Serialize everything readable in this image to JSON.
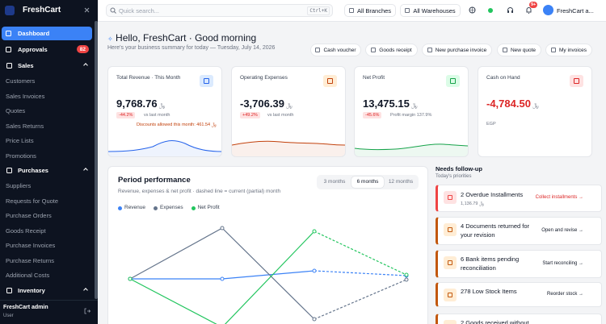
{
  "sidebar": {
    "brand": "FreshCart",
    "primary": [
      {
        "label": "Dashboard"
      },
      {
        "label": "Approvals",
        "badge": 82
      }
    ],
    "sections": [
      {
        "label": "Sales",
        "items": [
          "Customers",
          "Sales Invoices",
          "Quotes",
          "Sales Returns",
          "Price Lists",
          "Promotions"
        ]
      },
      {
        "label": "Purchases",
        "items": [
          "Suppliers",
          "Requests for Quote",
          "Purchase Orders",
          "Goods Receipt",
          "Purchase Invoices",
          "Purchase Returns",
          "Additional Costs"
        ]
      },
      {
        "label": "Inventory",
        "items": []
      }
    ],
    "user": {
      "name": "FreshCart admin",
      "role": "User"
    }
  },
  "topbar": {
    "search": "Quick search...",
    "shortcut": "Ctrl+K",
    "branch": "All Branches",
    "warehouse": "All Warehouses",
    "notifications": "9+",
    "user": "FreshCart a..."
  },
  "header": {
    "title": "Hello, FreshCart · Good morning",
    "subtitle": "Here's your business summary for today — Tuesday, July 14, 2026",
    "actions": [
      "Cash voucher",
      "Goods receipt",
      "New purchase invoice",
      "New quote",
      "My invoices"
    ]
  },
  "kpis": [
    {
      "title": "Total Revenue · This Month",
      "value": "9,768.76",
      "currency": "﷼",
      "change": "-44.2%",
      "change_note": "vs last month",
      "note": "Discounts allowed this month: 461.54 ﷼",
      "color": "#2563eb",
      "icon_bg": "#dbeafe"
    },
    {
      "title": "Operating Expenses",
      "value": "-3,706.39",
      "currency": "﷼",
      "change": "+49.2%",
      "change_note": "vs last month",
      "color": "#c2410c",
      "icon_bg": "#ffedd5"
    },
    {
      "title": "Net Profit",
      "value": "13,475.15",
      "currency": "﷼",
      "change": "-45.6%",
      "change_note": "Profit margin 137.9%",
      "color": "#16a34a",
      "icon_bg": "#dcfce7"
    },
    {
      "title": "Cash on Hand",
      "value": "-4,784.50",
      "currency": "﷼",
      "note": "EGP",
      "value_color": "#dc2626",
      "color": "#dc2626",
      "icon_bg": "#fee2e2"
    }
  ],
  "performance": {
    "title": "Period performance",
    "subtitle": "Revenue, expenses & net profit · dashed line = current (partial) month",
    "ranges": [
      "3 months",
      "6 months",
      "12 months"
    ],
    "selected_range": 1,
    "chart_data": {
      "type": "line",
      "ylim": [
        -20000,
        20000
      ],
      "series": [
        {
          "name": "Revenue",
          "color": "#3b82f6",
          "values": [
            0,
            0,
            2500,
            1000
          ]
        },
        {
          "name": "Expenses",
          "color": "#64748b",
          "values": [
            0,
            15750,
            -12500,
            -250
          ]
        },
        {
          "name": "Net Profit",
          "color": "#22c55e",
          "values": [
            0,
            -15000,
            14750,
            1250
          ]
        }
      ]
    }
  },
  "followup": {
    "title": "Needs follow-up",
    "subtitle": "Today's priorities",
    "items": [
      {
        "title": "2 Overdue Installments",
        "detail": "1,136.79 ﷼",
        "action": "Collect installments →",
        "color": "#ef4444"
      },
      {
        "title": "4 Documents returned for your revision",
        "action": "Open and revise →",
        "color": "#c2570c"
      },
      {
        "title": "6 Bank items pending reconciliation",
        "action": "Start reconciling →",
        "color": "#c2570c"
      },
      {
        "title": "278 Low Stock Items",
        "action": "Reorder stock →",
        "color": "#c2570c"
      },
      {
        "title": "2 Goods received without",
        "color": "#c2570c"
      }
    ]
  }
}
